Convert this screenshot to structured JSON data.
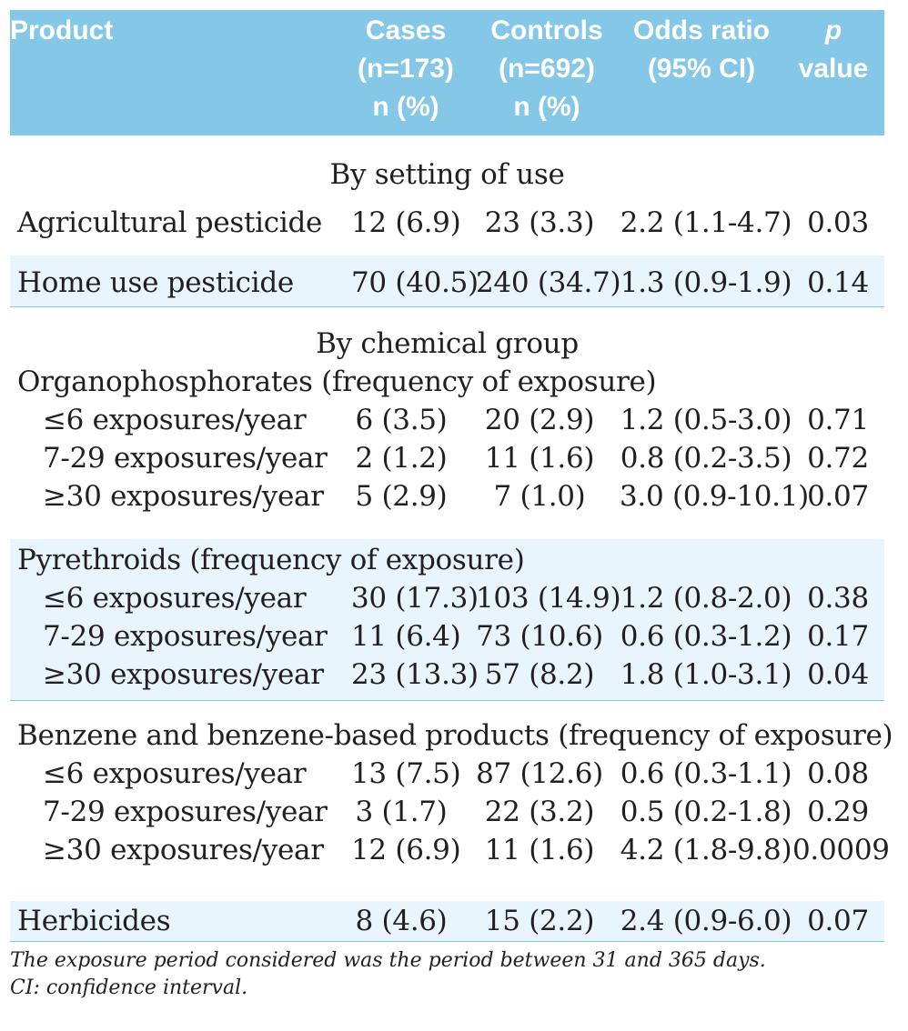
{
  "header": {
    "product": "Product",
    "cases": [
      "Cases",
      "(n=173)",
      "n (%)"
    ],
    "controls": [
      "Controls",
      "(n=692)",
      "n (%)"
    ],
    "odds_ratio": [
      "Odds ratio",
      "(95% CI)"
    ],
    "p_value": [
      "p",
      "value"
    ]
  },
  "sections": {
    "setting": "By setting of use",
    "chemical": "By chemical group"
  },
  "rows": {
    "agri": {
      "product": "Agricultural pesticide",
      "cases": "12 (6.9)",
      "controls": "23 (3.3)",
      "or": "2.2 (1.1-4.7)",
      "p": "0.03"
    },
    "home": {
      "product": "Home use pesticide",
      "cases": "70 (40.5)",
      "controls": "240 (34.7)",
      "or": "1.3 (0.9-1.9)",
      "p": "0.14"
    },
    "organo": {
      "title": "Organophosphorates (frequency of exposure)",
      "r": [
        {
          "product": "≤6 exposures/year",
          "cases": "6 (3.5)",
          "controls": "20 (2.9)",
          "or": "1.2 (0.5-3.0)",
          "p": "0.71"
        },
        {
          "product": "7-29 exposures/year",
          "cases": "2 (1.2)",
          "controls": "11 (1.6)",
          "or": "0.8 (0.2-3.5)",
          "p": "0.72"
        },
        {
          "product": "≥30 exposures/year",
          "cases": "5 (2.9)",
          "controls": "7 (1.0)",
          "or": "3.0 (0.9-10.1)",
          "p": "0.07"
        }
      ]
    },
    "pyre": {
      "title": "Pyrethroids (frequency of exposure)",
      "r": [
        {
          "product": "≤6 exposures/year",
          "cases": "30 (17.3)",
          "controls": "103 (14.9)",
          "or": "1.2 (0.8-2.0)",
          "p": "0.38"
        },
        {
          "product": "7-29 exposures/year",
          "cases": "11 (6.4)",
          "controls": "73 (10.6)",
          "or": "0.6 (0.3-1.2)",
          "p": "0.17"
        },
        {
          "product": "≥30 exposures/year",
          "cases": "23 (13.3)",
          "controls": "57 (8.2)",
          "or": "1.8 (1.0-3.1)",
          "p": "0.04"
        }
      ]
    },
    "benz": {
      "title": "Benzene and benzene-based products (frequency of exposure)",
      "r": [
        {
          "product": "≤6 exposures/year",
          "cases": "13 (7.5)",
          "controls": "87 (12.6)",
          "or": "0.6 (0.3-1.1)",
          "p": "0.08"
        },
        {
          "product": "7-29 exposures/year",
          "cases": "3 (1.7)",
          "controls": "22 (3.2)",
          "or": "0.5 (0.2-1.8)",
          "p": "0.29"
        },
        {
          "product": "≥30 exposures/year",
          "cases": "12 (6.9)",
          "controls": "11 (1.6)",
          "or": "4.2 (1.8-9.8)",
          "p": "0.0009"
        }
      ]
    },
    "herb": {
      "product": "Herbicides",
      "cases": "8 (4.6)",
      "controls": "15 (2.2)",
      "or": "2.4 (0.9-6.0)",
      "p": "0.07"
    }
  },
  "footnote": [
    "The exposure period considered was the period between 31 and 365 days.",
    "CI: confidence interval."
  ]
}
